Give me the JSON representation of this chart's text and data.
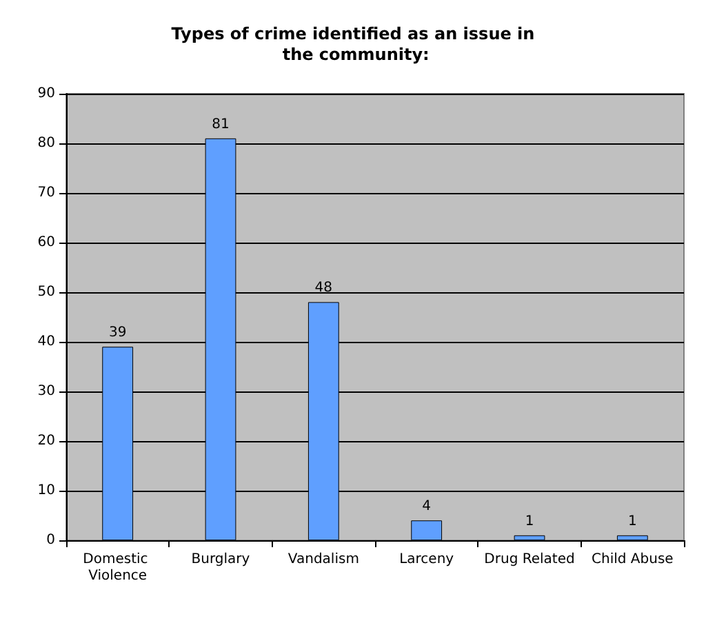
{
  "chart_data": {
    "type": "bar",
    "title": "Types of crime identified as an issue in the community:",
    "categories": [
      "Domestic Violence",
      "Burglary",
      "Vandalism",
      "Larceny",
      "Drug Related",
      "Child Abuse"
    ],
    "values": [
      39,
      81,
      48,
      4,
      1,
      1
    ],
    "color": "#5f9fff",
    "ylim": [
      0,
      90
    ],
    "yticks": [
      0,
      10,
      20,
      30,
      40,
      50,
      60,
      70,
      80,
      90
    ],
    "grid": "y",
    "data_labels": true
  }
}
